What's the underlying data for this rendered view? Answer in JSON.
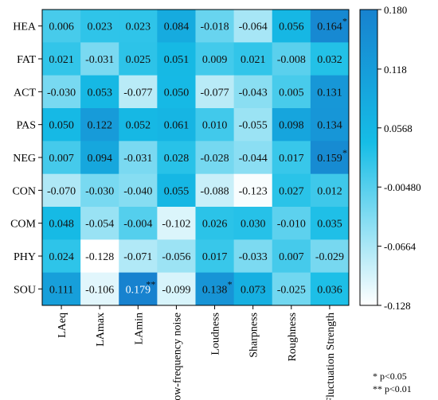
{
  "chart_data": {
    "type": "heatmap",
    "title": "",
    "rows": [
      "HEA",
      "FAT",
      "ACT",
      "PAS",
      "NEG",
      "CON",
      "COM",
      "PHY",
      "SOU"
    ],
    "columns": [
      "LAeq",
      "LAmax",
      "LAmin",
      "low-frequency noise",
      "Loudness",
      "Sharpness",
      "Roughness",
      "Fluctuation Strength"
    ],
    "cells": [
      [
        {
          "label": "0.006",
          "value": 0.006
        },
        {
          "label": "0.023",
          "value": 0.023
        },
        {
          "label": "0.023",
          "value": 0.023
        },
        {
          "label": "0.084",
          "value": 0.084
        },
        {
          "label": "-0.018",
          "value": -0.018
        },
        {
          "label": "-0.064",
          "value": -0.064
        },
        {
          "label": "0.056",
          "value": 0.056
        },
        {
          "label": "0.164",
          "value": 0.164,
          "mark": "*"
        }
      ],
      [
        {
          "label": "0.021",
          "value": 0.021
        },
        {
          "label": "-0.031",
          "value": -0.031
        },
        {
          "label": "0.025",
          "value": 0.025
        },
        {
          "label": "0.051",
          "value": 0.051
        },
        {
          "label": "0.009",
          "value": 0.009
        },
        {
          "label": "0.021",
          "value": 0.021
        },
        {
          "label": "-0.008",
          "value": -0.008
        },
        {
          "label": "0.032",
          "value": 0.032
        }
      ],
      [
        {
          "label": "-0.030",
          "value": -0.03
        },
        {
          "label": "0.053",
          "value": 0.053
        },
        {
          "label": "-0.077",
          "value": -0.077
        },
        {
          "label": "0.050",
          "value": 0.05
        },
        {
          "label": "-0.077",
          "value": -0.077
        },
        {
          "label": "-0.043",
          "value": -0.043
        },
        {
          "label": "0.005",
          "value": 0.005
        },
        {
          "label": "0.131",
          "value": 0.131
        }
      ],
      [
        {
          "label": "0.050",
          "value": 0.05
        },
        {
          "label": "0.122",
          "value": 0.122
        },
        {
          "label": "0.052",
          "value": 0.052
        },
        {
          "label": "0.061",
          "value": 0.061
        },
        {
          "label": "0.010",
          "value": 0.01
        },
        {
          "label": "-0.055",
          "value": -0.055
        },
        {
          "label": "0.098",
          "value": 0.098
        },
        {
          "label": "0.134",
          "value": 0.134
        }
      ],
      [
        {
          "label": "0.007",
          "value": 0.007
        },
        {
          "label": "0.094",
          "value": 0.094
        },
        {
          "label": "-0.031",
          "value": -0.031
        },
        {
          "label": "0.028",
          "value": 0.028
        },
        {
          "label": "-0.028",
          "value": -0.028
        },
        {
          "label": "-0.044",
          "value": -0.044
        },
        {
          "label": "0.017",
          "value": 0.017
        },
        {
          "label": "0.159",
          "value": 0.159,
          "mark": "*"
        }
      ],
      [
        {
          "label": "-0.070",
          "value": -0.07
        },
        {
          "label": "-0.030",
          "value": -0.03
        },
        {
          "label": "-0.040",
          "value": -0.04
        },
        {
          "label": "0.055",
          "value": 0.055
        },
        {
          "label": "-0.088",
          "value": -0.088
        },
        {
          "label": "-0.123",
          "value": -0.123
        },
        {
          "label": "0.027",
          "value": 0.027
        },
        {
          "label": "0.012",
          "value": 0.012
        }
      ],
      [
        {
          "label": "0.048",
          "value": 0.048
        },
        {
          "label": "-0.054",
          "value": -0.054
        },
        {
          "label": "-0.004",
          "value": -0.004
        },
        {
          "label": "-0.102",
          "value": -0.102
        },
        {
          "label": "0.026",
          "value": 0.026
        },
        {
          "label": "0.030",
          "value": 0.03
        },
        {
          "label": "-0.010",
          "value": -0.01
        },
        {
          "label": "0.035",
          "value": 0.035
        }
      ],
      [
        {
          "label": "0.024",
          "value": 0.024
        },
        {
          "label": "-0.128",
          "value": -0.128
        },
        {
          "label": "-0.071",
          "value": -0.071
        },
        {
          "label": "-0.056",
          "value": -0.056
        },
        {
          "label": "0.017",
          "value": 0.017
        },
        {
          "label": "-0.033",
          "value": -0.033
        },
        {
          "label": "0.007",
          "value": 0.007
        },
        {
          "label": "-0.029",
          "value": -0.029
        }
      ],
      [
        {
          "label": "0.111",
          "value": 0.111
        },
        {
          "label": "-0.106",
          "value": -0.106
        },
        {
          "label": "0.179",
          "value": 0.179,
          "mark": "**"
        },
        {
          "label": "-0.099",
          "value": -0.099
        },
        {
          "label": "0.138",
          "value": 0.138,
          "mark": "*"
        },
        {
          "label": "0.073",
          "value": 0.073
        },
        {
          "label": "-0.025",
          "value": -0.025
        },
        {
          "label": "0.036",
          "value": 0.036
        }
      ]
    ],
    "colorbar": {
      "min": -0.128,
      "max": 0.18,
      "tick_labels": [
        "0.180",
        "0.118",
        "0.0568",
        "-0.00480",
        "-0.0664",
        "-0.128"
      ],
      "tick_values": [
        0.18,
        0.118,
        0.0568,
        -0.0048,
        -0.0664,
        -0.128
      ],
      "low_color": "#ffffff",
      "mid_color": "#16bde6",
      "high_color": "#1782cf"
    },
    "legend_notes": [
      "* p<0.05",
      "** p<0.01"
    ]
  }
}
